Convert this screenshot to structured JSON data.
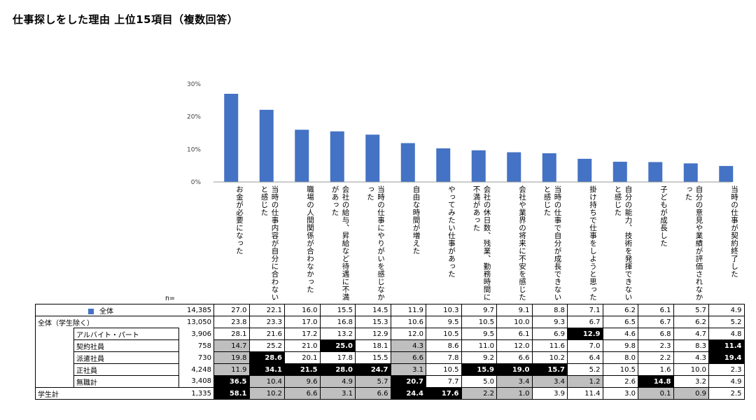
{
  "title": "仕事探しをした理由 上位15項目（複数回答）",
  "n_label": "n=",
  "colors": {
    "bar": "#4472c4",
    "highlight": "#000000",
    "low": "#bfbfbf"
  },
  "chart_data": {
    "type": "bar",
    "title": "仕事探しをした理由 上位15項目（複数回答）",
    "ylim": [
      0,
      30
    ],
    "yticks": [
      "0%",
      "10%",
      "20%",
      "30%"
    ],
    "yticks_values": [
      0,
      10,
      20,
      30
    ],
    "grid": false,
    "categories": [
      "お金が必要になった",
      "当時の仕事内容が自分に合わないと感じた",
      "職場の人間関係が合わなかった",
      "会社の給与、昇給など待遇に不満があった",
      "当時の仕事にやりがいを感じなかった",
      "自由な時間が増えた",
      "やってみたい仕事があった",
      "会社の休日数、残業、勤務時間に不満があった",
      "会社や業界の将来に不安を感じた",
      "当時の仕事で自分が成長できないと感じた",
      "掛け持ちで仕事をしようと思った",
      "自分の能力、技術を発揮できないと感じた",
      "子どもが成長した",
      "自分の意見や業績が評価されなかった",
      "当時の仕事が契約終了した"
    ],
    "series": [
      {
        "name": "全体",
        "values": [
          27.0,
          22.1,
          16.0,
          15.5,
          14.5,
          11.9,
          10.3,
          9.7,
          9.1,
          8.8,
          7.1,
          6.2,
          6.1,
          5.7,
          4.9
        ]
      }
    ],
    "table": [
      {
        "label": "全体",
        "legend": true,
        "n": "14,385",
        "values": [
          "27.0",
          "22.1",
          "16.0",
          "15.5",
          "14.5",
          "11.9",
          "10.3",
          "9.7",
          "9.1",
          "8.8",
          "7.1",
          "6.2",
          "6.1",
          "5.7",
          "4.9"
        ],
        "marks": []
      },
      {
        "label": "全体（学生除く）",
        "n": "13,050",
        "values": [
          "23.8",
          "23.3",
          "17.0",
          "16.8",
          "15.3",
          "10.6",
          "9.5",
          "10.5",
          "10.0",
          "9.3",
          "6.7",
          "6.5",
          "6.7",
          "6.2",
          "5.2"
        ],
        "marks": []
      },
      {
        "label": "アルバイト・パート",
        "sub": true,
        "n": "3,906",
        "values": [
          "28.1",
          "21.6",
          "17.2",
          "13.2",
          "12.9",
          "12.0",
          "10.5",
          "9.5",
          "6.1",
          "6.9",
          "12.9",
          "4.6",
          "6.8",
          "4.7",
          "4.8"
        ],
        "marks": [
          "",
          "",
          "",
          "",
          "",
          "",
          "",
          "",
          "",
          "",
          "h",
          "",
          "",
          "",
          ""
        ]
      },
      {
        "label": "契約社員",
        "sub": true,
        "n": "758",
        "values": [
          "14.7",
          "25.2",
          "21.0",
          "25.0",
          "18.1",
          "4.3",
          "8.6",
          "11.0",
          "12.0",
          "11.6",
          "7.0",
          "9.8",
          "2.3",
          "8.3",
          "11.4"
        ],
        "marks": [
          "l",
          "",
          "",
          "h",
          "",
          "l",
          "",
          "",
          "",
          "",
          "",
          "",
          "",
          "",
          "h"
        ]
      },
      {
        "label": "派遣社員",
        "sub": true,
        "n": "730",
        "values": [
          "19.8",
          "28.6",
          "20.1",
          "17.8",
          "15.5",
          "6.6",
          "7.8",
          "9.2",
          "6.6",
          "10.2",
          "6.4",
          "8.0",
          "2.2",
          "4.3",
          "19.4"
        ],
        "marks": [
          "l",
          "h",
          "",
          "",
          "",
          "l",
          "",
          "",
          "",
          "",
          "",
          "",
          "",
          "",
          "h"
        ]
      },
      {
        "label": "正社員",
        "sub": true,
        "n": "4,248",
        "values": [
          "11.9",
          "34.1",
          "21.5",
          "28.0",
          "24.7",
          "3.1",
          "10.5",
          "15.9",
          "19.0",
          "15.7",
          "5.2",
          "10.5",
          "1.6",
          "10.0",
          "2.3"
        ],
        "marks": [
          "l",
          "h",
          "h",
          "h",
          "h",
          "l",
          "",
          "h",
          "h",
          "h",
          "",
          "",
          "",
          "",
          ""
        ]
      },
      {
        "label": "無職計",
        "sub": true,
        "n": "3,408",
        "values": [
          "36.5",
          "10.4",
          "9.6",
          "4.9",
          "5.7",
          "20.7",
          "7.7",
          "5.0",
          "3.4",
          "3.4",
          "1.2",
          "2.6",
          "14.8",
          "3.2",
          "4.9"
        ],
        "marks": [
          "h",
          "l",
          "l",
          "l",
          "l",
          "h",
          "",
          "",
          "l",
          "l",
          "l",
          "",
          "h",
          "",
          ""
        ]
      },
      {
        "label": "学生計",
        "n": "1,335",
        "values": [
          "58.1",
          "10.2",
          "6.6",
          "3.1",
          "6.6",
          "24.4",
          "17.6",
          "2.2",
          "1.0",
          "3.9",
          "11.4",
          "3.0",
          "0.1",
          "0.9",
          "2.5"
        ],
        "marks": [
          "h",
          "l",
          "l",
          "l",
          "l",
          "h",
          "h",
          "l",
          "l",
          "",
          "",
          "",
          "l",
          "l",
          ""
        ]
      }
    ]
  }
}
